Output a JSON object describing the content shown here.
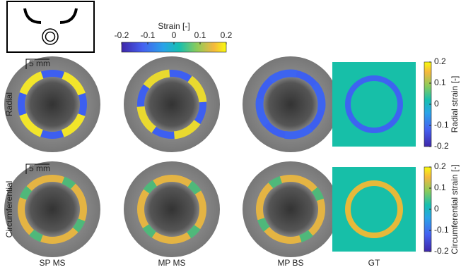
{
  "top_colorbar": {
    "label": "Strain [-]",
    "ticks": [
      -0.2,
      -0.1,
      0,
      0.1,
      0.2
    ]
  },
  "scale_bars": [
    "5 mm",
    "5 mm"
  ],
  "rows": [
    "Radial",
    "Circumferential"
  ],
  "columns": [
    "SP MS",
    "MP MS",
    "MP BS",
    "GT"
  ],
  "colorbars": [
    {
      "label": "Radial strain [-]",
      "ticks": [
        -0.2,
        -0.1,
        0,
        0.1,
        0.2
      ]
    },
    {
      "label": "Circumferential strain [-]",
      "ticks": [
        -0.2,
        -0.1,
        0,
        0.1,
        0.2
      ]
    }
  ]
}
